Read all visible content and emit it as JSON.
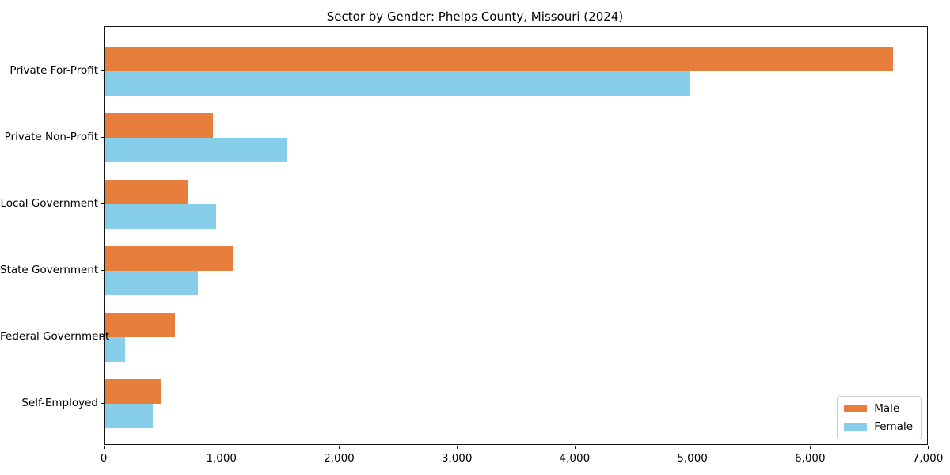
{
  "chart_data": {
    "type": "bar",
    "orientation": "horizontal",
    "title": "Sector by Gender: Phelps County, Missouri (2024)",
    "categories": [
      "Private For-Profit",
      "Private Non-Profit",
      "Local Government",
      "State Government",
      "Federal Government",
      "Self-Employed"
    ],
    "series": [
      {
        "name": "Male",
        "color": "#E87E3C",
        "values": [
          6700,
          920,
          715,
          1090,
          600,
          480
        ]
      },
      {
        "name": "Female",
        "color": "#87CEEB",
        "values": [
          4975,
          1555,
          950,
          795,
          175,
          410
        ]
      }
    ],
    "xlabel": "",
    "ylabel": "",
    "xlim": [
      0,
      7000
    ],
    "x_ticks": [
      0,
      1000,
      2000,
      3000,
      4000,
      5000,
      6000,
      7000
    ],
    "x_tick_labels": [
      "0",
      "1,000",
      "2,000",
      "3,000",
      "4,000",
      "5,000",
      "6,000",
      "7,000"
    ],
    "grid": false,
    "legend": {
      "position": "lower right",
      "entries": [
        {
          "label": "Male",
          "color": "#E87E3C"
        },
        {
          "label": "Female",
          "color": "#87CEEB"
        }
      ]
    }
  },
  "colors": {
    "axis": "#141414",
    "background": "#ffffff",
    "legend_border": "#cccccc"
  }
}
